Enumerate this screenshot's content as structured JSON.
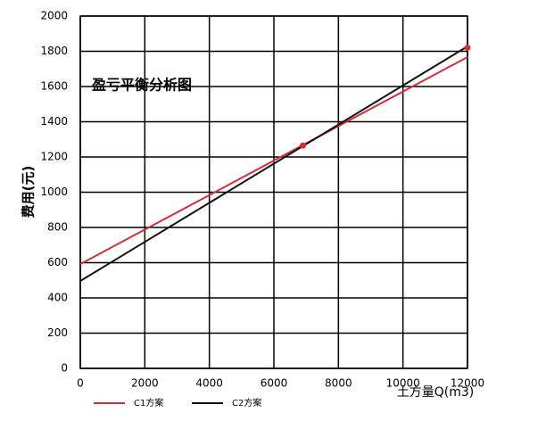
{
  "chart_data": {
    "type": "line",
    "title": "盈亏平衡分析图",
    "x_label": "土方量Q(m3)",
    "y_label": "费用(元)",
    "xlim": [
      0,
      12000
    ],
    "xticks": [
      0,
      2000,
      4000,
      6000,
      8000,
      10000,
      12000
    ],
    "ylim": [
      0,
      2000
    ],
    "yticks": [
      0,
      200,
      400,
      600,
      800,
      1000,
      1200,
      1400,
      1600,
      1800,
      2000
    ],
    "grid": true,
    "x": [
      0,
      12000
    ],
    "series": [
      {
        "name": "C1方案",
        "color": "#c8323c",
        "values": [
          592,
          1767
        ]
      },
      {
        "name": "C2方案",
        "color": "#111111",
        "values": [
          496,
          1828
        ]
      }
    ],
    "points": {
      "color": "#d0303a",
      "x": [
        6900,
        12000
      ],
      "y": [
        1265,
        1820
      ]
    },
    "legend": "bottom"
  }
}
